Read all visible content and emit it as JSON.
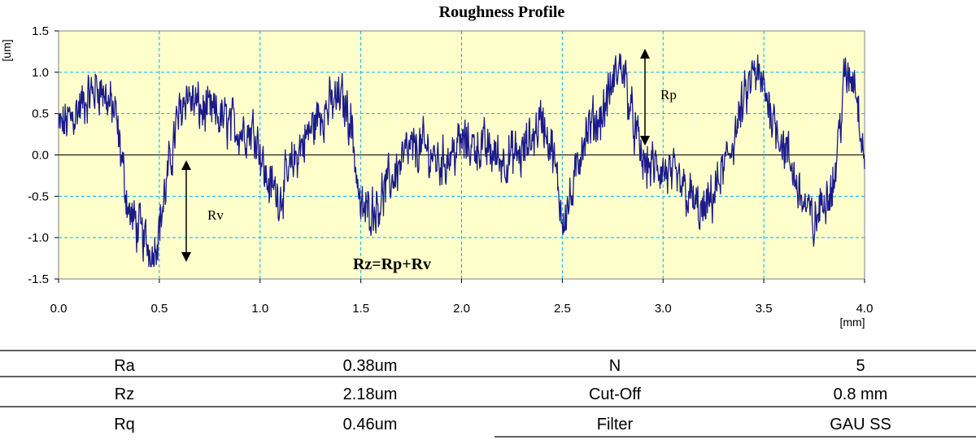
{
  "chart_data": {
    "type": "line",
    "title": "Roughness Profile",
    "xlabel": "[mm]",
    "ylabel": "[um]",
    "xlim": [
      0.0,
      4.0
    ],
    "ylim": [
      -1.5,
      1.5
    ],
    "x_ticks": [
      "0.0",
      "0.5",
      "1.0",
      "1.5",
      "2.0",
      "2.5",
      "3.0",
      "3.5",
      "4.0"
    ],
    "y_ticks": [
      "1.5",
      "1.0",
      "0.5",
      "0.0",
      "-0.5",
      "-1.0",
      "-1.5"
    ],
    "grid": true,
    "colors": {
      "line": "#1a1a8c",
      "plot_bg": "#ffffcc",
      "grid": "#00b0f0"
    },
    "series": [
      {
        "x": [
          0.0,
          0.1,
          0.2,
          0.28,
          0.35,
          0.42,
          0.47,
          0.52,
          0.58,
          0.63,
          0.7,
          0.8,
          0.9,
          0.98,
          1.03,
          1.1,
          1.2,
          1.3,
          1.4,
          1.45,
          1.5,
          1.58,
          1.65,
          1.72,
          1.8,
          1.9,
          2.0,
          2.1,
          2.2,
          2.3,
          2.4,
          2.45,
          2.5,
          2.55,
          2.6,
          2.7,
          2.77,
          2.8,
          2.85,
          2.9,
          3.0,
          3.1,
          3.2,
          3.3,
          3.4,
          3.45,
          3.5,
          3.6,
          3.7,
          3.75,
          3.8,
          3.85,
          3.9,
          3.95,
          4.0
        ],
        "y": [
          0.3,
          0.55,
          0.85,
          0.5,
          -0.7,
          -1.0,
          -1.2,
          -0.6,
          0.3,
          0.75,
          0.55,
          0.45,
          0.3,
          0.3,
          -0.3,
          -0.5,
          0.1,
          0.5,
          0.7,
          0.45,
          -0.7,
          -0.6,
          -0.3,
          0.0,
          0.1,
          -0.1,
          0.15,
          0.1,
          -0.05,
          0.0,
          0.45,
          0.05,
          -0.75,
          -0.5,
          0.2,
          0.5,
          1.0,
          1.1,
          0.4,
          -0.1,
          -0.2,
          -0.4,
          -0.75,
          -0.2,
          0.6,
          1.0,
          0.8,
          0.1,
          -0.6,
          -0.85,
          -0.5,
          -0.3,
          0.9,
          0.95,
          0.0
        ]
      }
    ],
    "annotations": {
      "rp_label": "Rp",
      "rv_label": "Rv",
      "rz_formula": "Rz=Rp+Rv"
    }
  },
  "table": {
    "rows": [
      [
        "Ra",
        "0.38um",
        "N",
        "5"
      ],
      [
        "Rz",
        "2.18um",
        "Cut-Off",
        "0.8 mm"
      ],
      [
        "Rq",
        "0.46um",
        "Filter",
        "GAU SS"
      ]
    ]
  }
}
